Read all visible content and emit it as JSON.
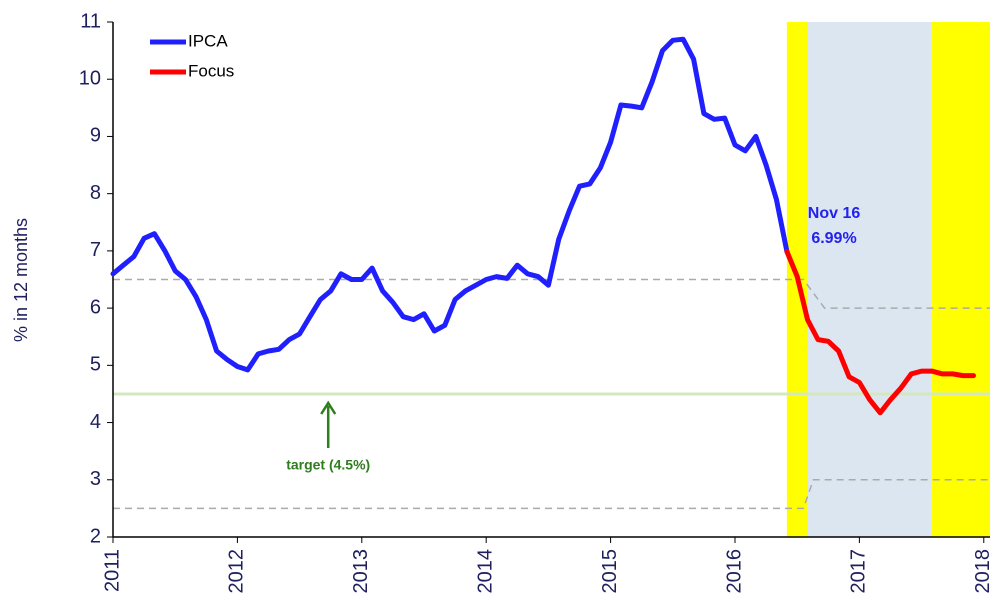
{
  "chart_data": {
    "type": "line",
    "y_label": "% in 12 months",
    "xlim": [
      2011,
      2018.05
    ],
    "ylim": [
      2,
      11
    ],
    "xticks": [
      2011,
      2012,
      2013,
      2014,
      2015,
      2016,
      2017,
      2018
    ],
    "yticks": [
      2,
      3,
      4,
      5,
      6,
      7,
      8,
      9,
      10,
      11
    ],
    "legend": "top-left",
    "bands": [
      {
        "from": 2016.417,
        "to": 2016.583,
        "color": "#ffff00"
      },
      {
        "from": 2016.583,
        "to": 2017.583,
        "color": "#dce6f0"
      },
      {
        "from": 2017.583,
        "to": 2018.05,
        "color": "#ffff00"
      }
    ],
    "reference_lines": [
      {
        "color": "#aaaaaa",
        "x": [
          2011,
          2016.55,
          2016.72,
          2018.05
        ],
        "values": [
          6.5,
          6.5,
          6.0,
          6.0
        ]
      },
      {
        "color": "#aaaaaa",
        "x": [
          2011,
          2016.55,
          2016.63,
          2018.05
        ],
        "values": [
          2.5,
          2.5,
          3.0,
          3.0
        ]
      }
    ],
    "target": {
      "value": 4.5,
      "color": "#d4e8bf",
      "label": "target (4.5%)",
      "label_color": "#2e7d1e",
      "arrow_x": 2012.73
    },
    "annotation": {
      "lines": [
        "Nov 16",
        "6.99%"
      ],
      "color": "#2222ee"
    },
    "series": [
      {
        "name": "IPCA",
        "color": "#2020ff",
        "x": [
          2011,
          2011.083,
          2011.167,
          2011.25,
          2011.333,
          2011.417,
          2011.5,
          2011.583,
          2011.667,
          2011.75,
          2011.833,
          2011.917,
          2012,
          2012.083,
          2012.167,
          2012.25,
          2012.333,
          2012.417,
          2012.5,
          2012.583,
          2012.667,
          2012.75,
          2012.833,
          2012.917,
          2013,
          2013.083,
          2013.167,
          2013.25,
          2013.333,
          2013.417,
          2013.5,
          2013.583,
          2013.667,
          2013.75,
          2013.833,
          2013.917,
          2014,
          2014.083,
          2014.167,
          2014.25,
          2014.333,
          2014.417,
          2014.5,
          2014.583,
          2014.667,
          2014.75,
          2014.833,
          2014.917,
          2015,
          2015.083,
          2015.167,
          2015.25,
          2015.333,
          2015.417,
          2015.5,
          2015.583,
          2015.667,
          2015.75,
          2015.833,
          2015.917,
          2016,
          2016.083,
          2016.167,
          2016.25,
          2016.333,
          2016.417
        ],
        "values": [
          6.6,
          6.75,
          6.9,
          7.22,
          7.3,
          7.0,
          6.65,
          6.5,
          6.2,
          5.8,
          5.25,
          5.1,
          4.98,
          4.92,
          5.2,
          5.25,
          5.28,
          5.45,
          5.55,
          5.85,
          6.15,
          6.3,
          6.6,
          6.5,
          6.5,
          6.7,
          6.3,
          6.1,
          5.85,
          5.8,
          5.9,
          5.6,
          5.7,
          6.15,
          6.3,
          6.4,
          6.5,
          6.55,
          6.52,
          6.75,
          6.6,
          6.55,
          6.4,
          7.2,
          7.7,
          8.13,
          8.17,
          8.45,
          8.9,
          9.55,
          9.53,
          9.5,
          9.95,
          10.5,
          10.68,
          10.7,
          10.35,
          9.4,
          9.3,
          9.32,
          8.85,
          8.75,
          9.0,
          8.5,
          7.9,
          6.99
        ]
      },
      {
        "name": "Focus",
        "color": "#ff0000",
        "x": [
          2016.417,
          2016.5,
          2016.583,
          2016.667,
          2016.75,
          2016.833,
          2016.917,
          2017,
          2017.083,
          2017.167,
          2017.25,
          2017.333,
          2017.417,
          2017.5,
          2017.583,
          2017.667,
          2017.75,
          2017.833,
          2017.917
        ],
        "values": [
          6.99,
          6.55,
          5.8,
          5.45,
          5.42,
          5.25,
          4.8,
          4.7,
          4.4,
          4.17,
          4.4,
          4.6,
          4.85,
          4.9,
          4.9,
          4.85,
          4.85,
          4.82,
          4.82
        ]
      }
    ]
  }
}
